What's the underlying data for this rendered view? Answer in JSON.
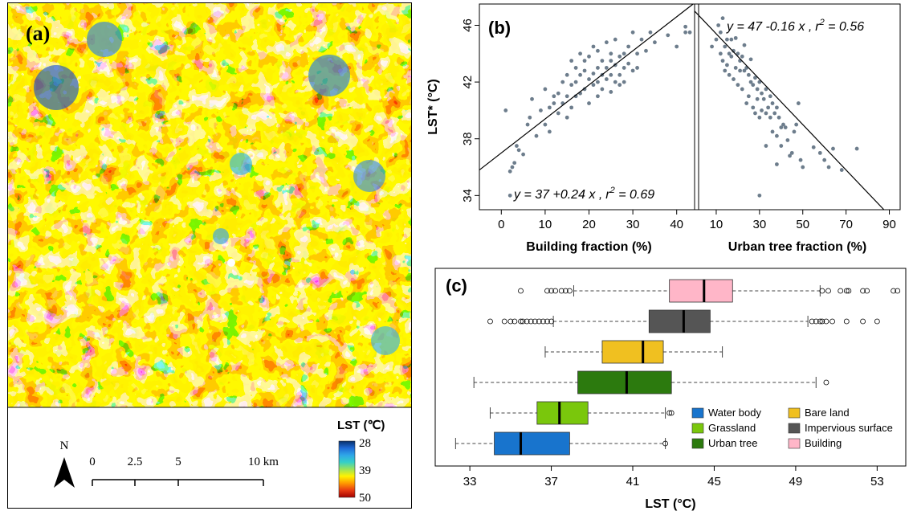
{
  "colors": {
    "lst_ramp": [
      "#08306b",
      "#1f6bd6",
      "#2fa6e8",
      "#35d0c8",
      "#9be35a",
      "#fff200",
      "#ff9900",
      "#e83a12",
      "#a30000"
    ],
    "points": "#6d7d8c",
    "water_body": "#1874cd",
    "grassland": "#7ac70c",
    "urban_tree": "#2c7a0e",
    "bare_land": "#f0c020",
    "impervious_surface": "#555555",
    "building": "#ffb6c8"
  },
  "map": {
    "panel_label": "(a)",
    "north_label": "N",
    "scale_ticks": [
      "0",
      "2.5",
      "5",
      "10 km"
    ],
    "legend": {
      "title": "LST (℃)",
      "labels": [
        "28",
        "39",
        "50"
      ]
    }
  },
  "chart_data": [
    {
      "id": "b-left",
      "type": "scatter",
      "panel_label": "(b)",
      "xlabel": "Building fraction (%)",
      "ylabel": "LST* (°C)",
      "xlim": [
        -5,
        45
      ],
      "ylim": [
        33,
        47.5
      ],
      "xticks": [
        "0",
        "10",
        "20",
        "30",
        "40"
      ],
      "yticks": [
        "34",
        "38",
        "42",
        "46"
      ],
      "fit": {
        "intercept": 37,
        "slope": 0.24
      },
      "equation": {
        "pre": "y = 37 +0.24 x ,",
        "r": "r",
        "sup": "2",
        "post": " = 0.69"
      },
      "points": [
        [
          2,
          34
        ],
        [
          1,
          40
        ],
        [
          2,
          35.7
        ],
        [
          3,
          36.3
        ],
        [
          4,
          37.2
        ],
        [
          5,
          36.9
        ],
        [
          2.5,
          36
        ],
        [
          3.5,
          37.5
        ],
        [
          6,
          39
        ],
        [
          7,
          40.8
        ],
        [
          6.5,
          39.5
        ],
        [
          8,
          38.2
        ],
        [
          9,
          40
        ],
        [
          10,
          39
        ],
        [
          10,
          41.5
        ],
        [
          11,
          40.2
        ],
        [
          11,
          38.5
        ],
        [
          12,
          40.5
        ],
        [
          12,
          41
        ],
        [
          13,
          39.8
        ],
        [
          13,
          41.2
        ],
        [
          14,
          40.5
        ],
        [
          14,
          42
        ],
        [
          15,
          41
        ],
        [
          15,
          39.5
        ],
        [
          15,
          42.5
        ],
        [
          16,
          41.8
        ],
        [
          16,
          40.2
        ],
        [
          16,
          43.5
        ],
        [
          17,
          42
        ],
        [
          17,
          41
        ],
        [
          17,
          43
        ],
        [
          18,
          42.5
        ],
        [
          18,
          41.2
        ],
        [
          18,
          44
        ],
        [
          19,
          42.8
        ],
        [
          19,
          41.5
        ],
        [
          19,
          43.5
        ],
        [
          20,
          42.2
        ],
        [
          20,
          40.5
        ],
        [
          20,
          43.8
        ],
        [
          21,
          42.6
        ],
        [
          21,
          41.8
        ],
        [
          21,
          44.5
        ],
        [
          22,
          43
        ],
        [
          22,
          42
        ],
        [
          22,
          41
        ],
        [
          22,
          44.2
        ],
        [
          23,
          42.5
        ],
        [
          23,
          43.5
        ],
        [
          23,
          41.5
        ],
        [
          24,
          43
        ],
        [
          24,
          42.2
        ],
        [
          24,
          44.8
        ],
        [
          25,
          43.5
        ],
        [
          25,
          42.5
        ],
        [
          25,
          41.3
        ],
        [
          25,
          44
        ],
        [
          26,
          43.2
        ],
        [
          26,
          42
        ],
        [
          26,
          45
        ],
        [
          27,
          43.8
        ],
        [
          27,
          42.5
        ],
        [
          27,
          41.8
        ],
        [
          28,
          44
        ],
        [
          28,
          43
        ],
        [
          28,
          42
        ],
        [
          29,
          44.5
        ],
        [
          29,
          43.3
        ],
        [
          30,
          45.5
        ],
        [
          30,
          42.8
        ],
        [
          31,
          44
        ],
        [
          31,
          43
        ],
        [
          32,
          45
        ],
        [
          33,
          44.2
        ],
        [
          34,
          45.5
        ],
        [
          35,
          44.8
        ],
        [
          38,
          45.3
        ],
        [
          40,
          44.5
        ],
        [
          42,
          45.5
        ],
        [
          42,
          45.9
        ],
        [
          43,
          45.5
        ]
      ]
    },
    {
      "id": "b-right",
      "type": "scatter",
      "xlabel": "Urban tree fraction (%)",
      "xlim": [
        0,
        95
      ],
      "ylim": [
        33,
        47.5
      ],
      "xticks": [
        "10",
        "30",
        "50",
        "70",
        "90"
      ],
      "fit": {
        "intercept": 47,
        "slope": -0.16
      },
      "equation": {
        "pre": "y = 47 -0.16 x ,",
        "r": "r",
        "sup": "2",
        "post": " = 0.56"
      },
      "points": [
        [
          8,
          44.5
        ],
        [
          10,
          45
        ],
        [
          11,
          46
        ],
        [
          12,
          44
        ],
        [
          12,
          45.5
        ],
        [
          13,
          43.5
        ],
        [
          13,
          46.5
        ],
        [
          14,
          44.5
        ],
        [
          14,
          42.8
        ],
        [
          15,
          45
        ],
        [
          15,
          43.2
        ],
        [
          16,
          44
        ],
        [
          16,
          42.5
        ],
        [
          17,
          45
        ],
        [
          17,
          43.8
        ],
        [
          18,
          44.2
        ],
        [
          18,
          42.2
        ],
        [
          19,
          43
        ],
        [
          19,
          45.1
        ],
        [
          20,
          44
        ],
        [
          20,
          41.8
        ],
        [
          21,
          43.5
        ],
        [
          21,
          42.8
        ],
        [
          22,
          43.8
        ],
        [
          22,
          41.5
        ],
        [
          23,
          42.8
        ],
        [
          23,
          44.6
        ],
        [
          24,
          43
        ],
        [
          24,
          40.5
        ],
        [
          25,
          42.5
        ],
        [
          25,
          41
        ],
        [
          26,
          43.6
        ],
        [
          26,
          42
        ],
        [
          27,
          41.8
        ],
        [
          27,
          40.2
        ],
        [
          28,
          42.3
        ],
        [
          28,
          39.8
        ],
        [
          29,
          41.5
        ],
        [
          29,
          40.8
        ],
        [
          30,
          42
        ],
        [
          30,
          39.5
        ],
        [
          31,
          41.2
        ],
        [
          31,
          40
        ],
        [
          32,
          40.8
        ],
        [
          33,
          39.8
        ],
        [
          33,
          41.5
        ],
        [
          34,
          40.2
        ],
        [
          35,
          41
        ],
        [
          35,
          39.5
        ],
        [
          36,
          40.5
        ],
        [
          36,
          38.5
        ],
        [
          37,
          39.8
        ],
        [
          38,
          40.2
        ],
        [
          38,
          38.2
        ],
        [
          39,
          39.5
        ],
        [
          40,
          38.8
        ],
        [
          40,
          37.5
        ],
        [
          41,
          39
        ],
        [
          42,
          38.8
        ],
        [
          43,
          37.9
        ],
        [
          44,
          36.8
        ],
        [
          45,
          37
        ],
        [
          46,
          38.5
        ],
        [
          47,
          39
        ],
        [
          48,
          40.5
        ],
        [
          49,
          36.5
        ],
        [
          50,
          36
        ],
        [
          55,
          37.4
        ],
        [
          58,
          37
        ],
        [
          60,
          36.5
        ],
        [
          62,
          36
        ],
        [
          64,
          37.3
        ],
        [
          68,
          35.8
        ],
        [
          75,
          37.3
        ],
        [
          30,
          34
        ],
        [
          33,
          37.5
        ],
        [
          38,
          36.2
        ]
      ]
    },
    {
      "id": "c",
      "type": "box",
      "panel_label": "(c)",
      "xlabel": "LST (°C)",
      "xlim": [
        31.3,
        54.8
      ],
      "xticks": [
        "33",
        "37",
        "41",
        "45",
        "49",
        "53"
      ],
      "categories": [
        "Water body",
        "Grassland",
        "Urban tree",
        "Bare land",
        "Impervious surface",
        "Building"
      ],
      "legend": [
        [
          "Water body",
          "Bare land"
        ],
        [
          "Grassland",
          "Impervious surface"
        ],
        [
          "Urban tree",
          "Building"
        ]
      ],
      "boxes": [
        {
          "name": "Building",
          "whisker_low": 38.1,
          "q1": 42.8,
          "median": 44.5,
          "q3": 45.9,
          "whisker_high": 50.2,
          "outliers": [
            35.5,
            36.8,
            37,
            37.2,
            37.5,
            37.7,
            37.9,
            50.3,
            50.6,
            51.2,
            51.5,
            51.6,
            52.3,
            52.5,
            53.8,
            54
          ]
        },
        {
          "name": "Impervious surface",
          "whisker_low": 37.1,
          "q1": 41.8,
          "median": 43.5,
          "q3": 44.8,
          "whisker_high": 49.6,
          "outliers": [
            34,
            34.7,
            35,
            35.2,
            35.5,
            35.6,
            35.8,
            36,
            36.2,
            36.4,
            36.6,
            36.8,
            37,
            49.8,
            50,
            50.2,
            50.3,
            50.5,
            50.8,
            51.5,
            52.3,
            53
          ]
        },
        {
          "name": "Bare land",
          "whisker_low": 36.7,
          "q1": 39.5,
          "median": 41.5,
          "q3": 42.5,
          "whisker_high": 45.4,
          "outliers": []
        },
        {
          "name": "Urban tree",
          "whisker_low": 33.2,
          "q1": 38.3,
          "median": 40.7,
          "q3": 42.9,
          "whisker_high": 50,
          "outliers": [
            50.5
          ]
        },
        {
          "name": "Grassland",
          "whisker_low": 34,
          "q1": 36.3,
          "median": 37.4,
          "q3": 38.8,
          "whisker_high": 42.6,
          "outliers": [
            42.8,
            42.9
          ]
        },
        {
          "name": "Water body",
          "whisker_low": 32.3,
          "q1": 34.2,
          "median": 35.5,
          "q3": 37.9,
          "whisker_high": 42.6,
          "outliers": [
            42.6
          ]
        }
      ]
    }
  ]
}
